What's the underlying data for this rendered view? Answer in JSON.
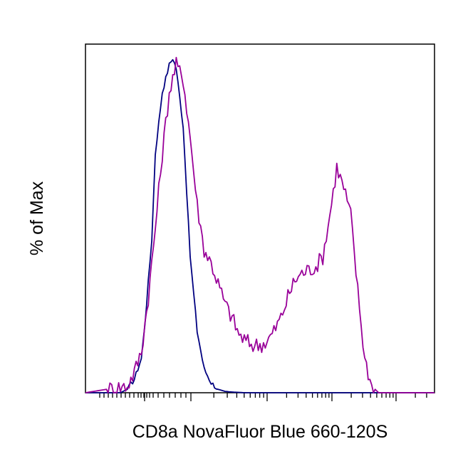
{
  "chart_data": {
    "type": "line",
    "title": "",
    "xlabel": "CD8a NovaFluor Blue 660-120S",
    "ylabel": "% of Max",
    "x_scale": "log",
    "xlim": [
      0,
      100
    ],
    "ylim": [
      0,
      100
    ],
    "grid": false,
    "legend": "none",
    "series": [
      {
        "color": "#000080",
        "x": [
          0,
          10,
          12,
          14,
          16,
          17,
          19,
          20,
          22,
          24,
          25,
          26,
          28,
          30,
          32,
          34,
          36,
          38,
          40,
          42,
          44,
          46,
          48,
          50,
          55,
          60,
          100
        ],
        "y": [
          0,
          0,
          1,
          4,
          10,
          20,
          45,
          70,
          88,
          96,
          98,
          95,
          78,
          40,
          18,
          7,
          3,
          1,
          0.4,
          0.2,
          0.1,
          0,
          0,
          0,
          0,
          0,
          0
        ]
      },
      {
        "color": "#990099",
        "x": [
          0,
          12,
          14,
          16,
          18,
          20,
          22,
          24,
          26,
          28,
          30,
          32,
          34,
          36,
          38,
          40,
          42,
          44,
          46,
          48,
          50,
          52,
          54,
          56,
          58,
          60,
          62,
          64,
          66,
          68,
          70,
          72,
          74,
          76,
          78,
          80,
          82,
          84,
          86,
          88,
          90,
          100
        ],
        "y": [
          0,
          2,
          6,
          12,
          28,
          48,
          70,
          88,
          96,
          92,
          75,
          55,
          42,
          38,
          32,
          26,
          22,
          17,
          15,
          14,
          14,
          15,
          18,
          22,
          28,
          33,
          35,
          36,
          37,
          40,
          52,
          66,
          60,
          52,
          30,
          10,
          2,
          0,
          0,
          0,
          0,
          0
        ]
      }
    ]
  }
}
